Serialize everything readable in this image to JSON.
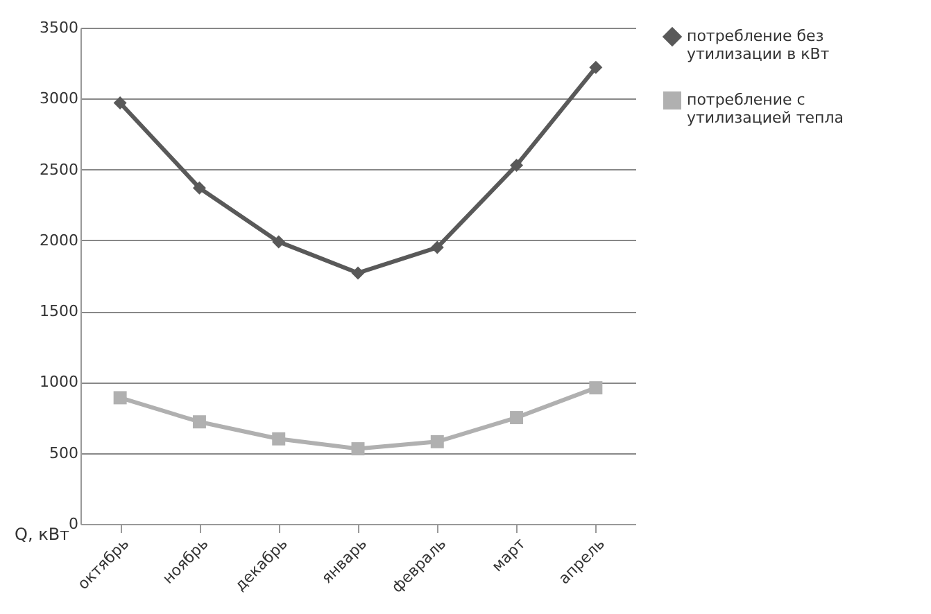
{
  "chart_data": {
    "type": "line",
    "ylabel": "Q, кВт",
    "categories": [
      "октябрь",
      "ноябрь",
      "декабрь",
      "январь",
      "февраль",
      "март",
      "апрель"
    ],
    "series": [
      {
        "name": "потребление без утилизации в кВт",
        "color": "#595959",
        "marker": "diamond",
        "values": [
          2970,
          2370,
          1990,
          1770,
          1950,
          2530,
          3220
        ]
      },
      {
        "name": "потребление с утилизацией тепла",
        "color": "#b0b0b0",
        "marker": "square",
        "values": [
          890,
          720,
          600,
          530,
          580,
          750,
          960
        ]
      }
    ],
    "ylim": [
      0,
      3500
    ],
    "yticks": [
      0,
      500,
      1000,
      1500,
      2000,
      2500,
      3000,
      3500
    ],
    "grid": "y",
    "legend": "right",
    "line_style": "solid"
  }
}
